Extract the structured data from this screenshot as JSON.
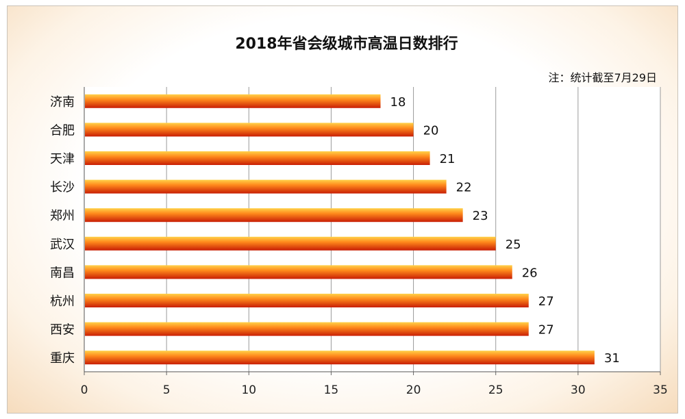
{
  "chart_data": {
    "type": "bar",
    "orientation": "horizontal",
    "title": "2018年省会级城市高温日数排行",
    "note": "注：统计截至7月29日",
    "categories": [
      "济南",
      "合肥",
      "天津",
      "长沙",
      "郑州",
      "武汉",
      "南昌",
      "杭州",
      "西安",
      "重庆"
    ],
    "values": [
      18,
      20,
      21,
      22,
      23,
      25,
      26,
      27,
      27,
      31
    ],
    "xlim": [
      0,
      35
    ],
    "xticks": [
      0,
      5,
      10,
      15,
      20,
      25,
      30,
      35
    ],
    "grid": true,
    "data_labels": true,
    "colors": {
      "bar_light": "#ffd24a",
      "bar_mid": "#ff8a1c",
      "bar_dark": "#c81e05",
      "grid": "#9a9a9a"
    }
  }
}
